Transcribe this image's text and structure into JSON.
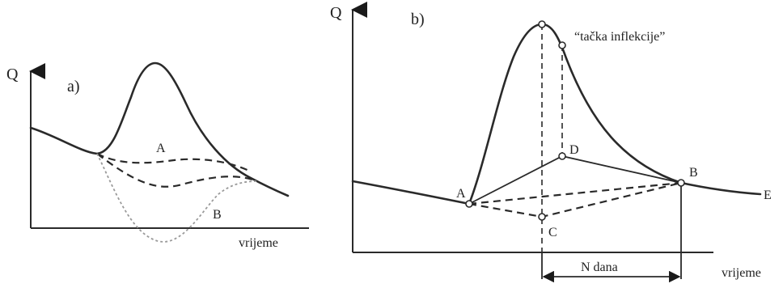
{
  "panel_a": {
    "label": "a)",
    "y_axis_label": "Q",
    "x_axis_label": "vrijeme",
    "curve_labels": {
      "A": "A",
      "B": "B"
    }
  },
  "panel_b": {
    "label": "b)",
    "y_axis_label": "Q",
    "x_axis_label": "vrijeme",
    "inflection_label": "“tačka inflekcije”",
    "point_labels": {
      "A": "A",
      "B": "B",
      "C": "C",
      "D": "D",
      "E": "E"
    },
    "interval_label": "N dana"
  }
}
